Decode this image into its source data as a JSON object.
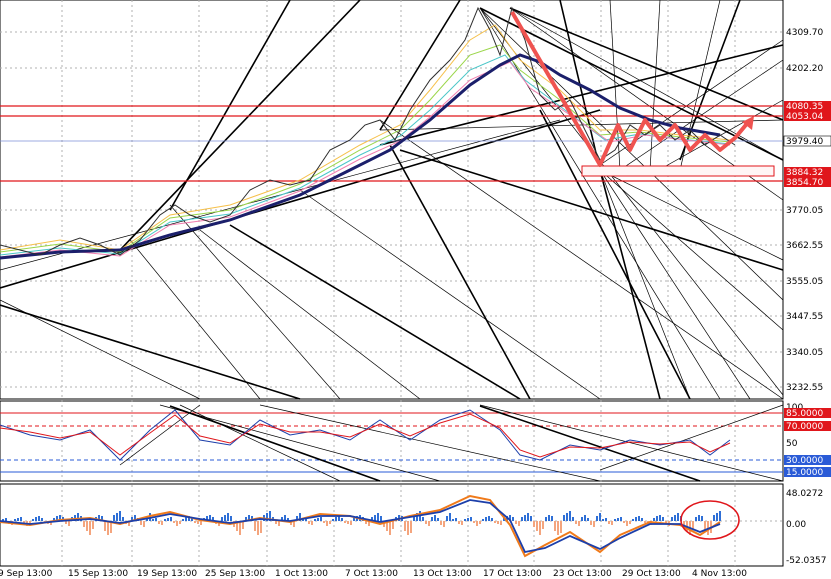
{
  "instrument": {
    "price_ticks": [
      "4309.70",
      "4202.20",
      "3770.05",
      "3662.55",
      "3555.05",
      "3447.55",
      "3340.05",
      "3232.55"
    ],
    "current_price": "3979.40",
    "resistance_zone": [
      "4080.35",
      "4053.04"
    ],
    "support_zone": [
      "3884.32",
      "3854.70"
    ],
    "partial_tick": "100"
  },
  "oscillator": {
    "level_labels": [
      "85.0000",
      "70.0000",
      "30.0000",
      "15.0000"
    ],
    "mid_label": "50",
    "top_label": "100"
  },
  "macd": {
    "labels": [
      "48.0272",
      "0.00",
      "-52.0357"
    ]
  },
  "time_axis": {
    "labels": [
      "9 Sep 13:00",
      "15 Sep 13:00",
      "19 Sep 13:00",
      "25 Sep 13:00",
      "1 Oct 13:00",
      "7 Oct 13:00",
      "13 Oct 13:00",
      "17 Oct 13:00",
      "23 Oct 13:00",
      "29 Oct 13:00",
      "4 Nov 13:00"
    ]
  },
  "colors": {
    "resistance": "#e0161b",
    "support": "#e0161b",
    "price_tag": "#ffffff",
    "current_tag_bg": "#ffffff",
    "trend": "#1b1f6b",
    "arrow": "#ef5350",
    "macd_pos": "#2f6fd6",
    "macd_neg": "#f4a57e",
    "macd_line": "#f07a1a",
    "signal_line": "#1c3faa"
  }
}
